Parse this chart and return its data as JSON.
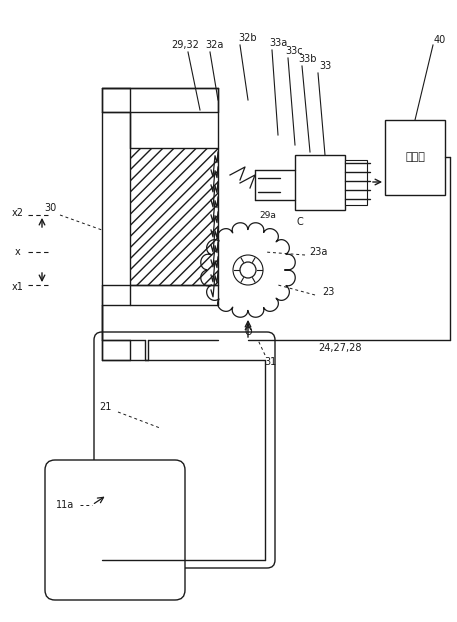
{
  "bg": "#ffffff",
  "lc": "#1a1a1a",
  "labels": {
    "x2": "x2",
    "x": "x",
    "x1": "x1",
    "30": "30",
    "29_32": "29,32",
    "32a": "32a",
    "32b": "32b",
    "33a": "33a",
    "33c": "33c",
    "33b": "33b",
    "33": "33",
    "40": "40",
    "29a": "29a",
    "C": "C",
    "23a": "23a",
    "23": "23",
    "O": "O",
    "31": "31",
    "24_27_28": "24,27,28",
    "21": "21",
    "11a": "11a",
    "ctrl": "制御算"
  },
  "figsize": [
    4.57,
    6.22
  ],
  "dpi": 100
}
